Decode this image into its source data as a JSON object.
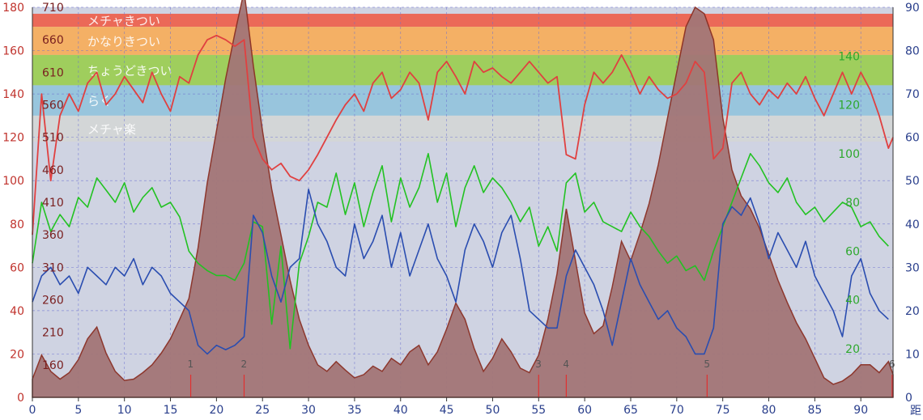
{
  "colors": {
    "plot_bg": "#cfd3e2",
    "elevation_fill": "#a37677",
    "elevation_stroke": "#8a2f24",
    "heart_rate": "#e04040",
    "cadence": "#22c222",
    "speed": "#2a4db0",
    "grid": "#6a6fd0",
    "zone_meccha_kitsui": "#ec6350",
    "zone_kanari_kitsui": "#f5ae5e",
    "zone_choudo_kitsui": "#9ccd55",
    "zone_raku": "#95c4dc",
    "zone_meccha_raku": "#d3d6d6",
    "left_axis_color": "#c0322c",
    "left_inner_axis_color": "#7a2020",
    "right_axis_color": "#2a3f8c",
    "right_inner_axis_color": "#2ea82e",
    "marker_color": "#e03030"
  },
  "chart_data": {
    "type": "area",
    "grid": true,
    "x": {
      "range": [
        0,
        93.5
      ],
      "ticks": [
        0,
        5,
        10,
        15,
        20,
        25,
        30,
        35,
        40,
        45,
        50,
        55,
        60,
        65,
        70,
        75,
        80,
        85,
        90
      ],
      "label": "距"
    },
    "y_left": {
      "range": [
        0,
        180
      ],
      "ticks": [
        0,
        20,
        40,
        60,
        80,
        100,
        120,
        140,
        160,
        180
      ]
    },
    "y_left_inner": {
      "range": [
        110,
        710
      ],
      "ticks": [
        160,
        210,
        260,
        310,
        360,
        410,
        460,
        510,
        560,
        610,
        660,
        710
      ]
    },
    "y_right": {
      "range": [
        0,
        90
      ],
      "ticks": [
        0,
        10,
        20,
        30,
        40,
        50,
        60,
        70,
        80,
        90
      ]
    },
    "y_right_inner": {
      "range": [
        0,
        160
      ],
      "ticks": [
        20,
        40,
        60,
        80,
        100,
        120,
        140
      ]
    },
    "zones": [
      {
        "label": "メチャきつい",
        "from": 171,
        "to": 177,
        "color_key": "zone_meccha_kitsui"
      },
      {
        "label": "かなりきつい",
        "from": 158,
        "to": 171,
        "color_key": "zone_kanari_kitsui"
      },
      {
        "label": "ちょうどきつい",
        "from": 144,
        "to": 158,
        "color_key": "zone_choudo_kitsui"
      },
      {
        "label": "らく",
        "from": 130,
        "to": 144,
        "color_key": "zone_raku"
      },
      {
        "label": "メチャ楽",
        "from": 118,
        "to": 130,
        "color_key": "zone_meccha_raku"
      }
    ],
    "markers": [
      {
        "label": "1",
        "x": 17.2
      },
      {
        "label": "2",
        "x": 23.0
      },
      {
        "label": "3",
        "x": 55.0
      },
      {
        "label": "4",
        "x": 58.0
      },
      {
        "label": "5",
        "x": 73.3
      },
      {
        "label": "6",
        "x": 93.4
      }
    ],
    "series": [
      {
        "key": "elevation",
        "axis": "left_inner",
        "x": [
          0,
          1,
          2,
          3,
          4,
          5,
          6,
          7,
          8,
          9,
          10,
          11,
          12,
          13,
          14,
          15,
          16,
          17,
          18,
          19,
          20,
          21,
          22,
          23,
          24,
          25,
          26,
          27,
          28,
          29,
          30,
          31,
          32,
          33,
          34,
          35,
          36,
          37,
          38,
          39,
          40,
          41,
          42,
          43,
          44,
          45,
          46,
          47,
          48,
          49,
          50,
          51,
          52,
          53,
          54,
          55,
          56,
          57,
          58,
          59,
          60,
          61,
          62,
          63,
          64,
          65,
          66,
          67,
          68,
          69,
          70,
          71,
          72,
          73,
          74,
          75,
          76,
          77,
          78,
          79,
          80,
          81,
          82,
          83,
          84,
          85,
          86,
          87,
          88,
          89,
          90,
          91,
          92,
          93,
          93.5
        ],
        "values": [
          138,
          175,
          150,
          138,
          148,
          168,
          200,
          218,
          178,
          150,
          136,
          138,
          148,
          160,
          178,
          200,
          230,
          262,
          340,
          440,
          520,
          600,
          670,
          735,
          620,
          520,
          430,
          360,
          290,
          230,
          190,
          160,
          150,
          165,
          152,
          140,
          145,
          158,
          150,
          170,
          160,
          180,
          190,
          160,
          180,
          215,
          255,
          230,
          185,
          150,
          170,
          200,
          180,
          155,
          148,
          175,
          230,
          300,
          400,
          320,
          240,
          208,
          220,
          280,
          350,
          320,
          362,
          408,
          468,
          540,
          610,
          680,
          710,
          700,
          660,
          540,
          460,
          420,
          400,
          370,
          330,
          290,
          256,
          225,
          200,
          170,
          140,
          130,
          135,
          145,
          160,
          160,
          148,
          165,
          145
        ]
      },
      {
        "key": "heart_rate",
        "axis": "left",
        "x": [
          0,
          1,
          2,
          3,
          4,
          5,
          6,
          7,
          8,
          9,
          10,
          11,
          12,
          13,
          14,
          15,
          16,
          17,
          18,
          19,
          20,
          21,
          22,
          23,
          24,
          25,
          26,
          27,
          28,
          29,
          30,
          31,
          32,
          33,
          34,
          35,
          36,
          37,
          38,
          39,
          40,
          41,
          42,
          43,
          44,
          45,
          46,
          47,
          48,
          49,
          50,
          51,
          52,
          53,
          54,
          55,
          56,
          57,
          58,
          59,
          60,
          61,
          62,
          63,
          64,
          65,
          66,
          67,
          68,
          69,
          70,
          71,
          72,
          73,
          74,
          75,
          76,
          77,
          78,
          79,
          80,
          81,
          82,
          83,
          84,
          85,
          86,
          87,
          88,
          89,
          90,
          91,
          92,
          93,
          93.5
        ],
        "values": [
          75,
          140,
          100,
          130,
          140,
          132,
          145,
          150,
          135,
          140,
          148,
          142,
          136,
          150,
          140,
          132,
          148,
          145,
          158,
          165,
          167,
          165,
          162,
          165,
          120,
          110,
          105,
          108,
          102,
          100,
          105,
          112,
          120,
          128,
          135,
          140,
          132,
          145,
          150,
          138,
          142,
          150,
          145,
          128,
          150,
          155,
          148,
          140,
          155,
          150,
          152,
          148,
          145,
          150,
          155,
          150,
          145,
          148,
          112,
          110,
          135,
          150,
          145,
          150,
          158,
          150,
          140,
          148,
          142,
          138,
          140,
          145,
          155,
          150,
          110,
          115,
          145,
          150,
          140,
          135,
          142,
          138,
          145,
          140,
          148,
          138,
          130,
          140,
          150,
          140,
          150,
          142,
          130,
          115,
          120
        ]
      },
      {
        "key": "cadence",
        "axis": "right_inner",
        "x": [
          0,
          1,
          2,
          3,
          4,
          5,
          6,
          7,
          8,
          9,
          10,
          11,
          12,
          13,
          14,
          15,
          16,
          17,
          18,
          19,
          20,
          21,
          22,
          23,
          24,
          25,
          26,
          27,
          28,
          29,
          30,
          31,
          32,
          33,
          34,
          35,
          36,
          37,
          38,
          39,
          40,
          41,
          42,
          43,
          44,
          45,
          46,
          47,
          48,
          49,
          50,
          51,
          52,
          53,
          54,
          55,
          56,
          57,
          58,
          59,
          60,
          61,
          62,
          63,
          64,
          65,
          66,
          67,
          68,
          69,
          70,
          71,
          72,
          73,
          74,
          75,
          76,
          77,
          78,
          79,
          80,
          81,
          82,
          83,
          84,
          85,
          86,
          87,
          88,
          89,
          90,
          91,
          92,
          93
        ],
        "values": [
          55,
          80,
          68,
          75,
          70,
          82,
          78,
          90,
          85,
          80,
          88,
          76,
          82,
          86,
          78,
          80,
          74,
          60,
          55,
          52,
          50,
          50,
          48,
          55,
          72,
          70,
          30,
          62,
          20,
          55,
          66,
          80,
          78,
          92,
          75,
          88,
          70,
          84,
          95,
          72,
          90,
          78,
          86,
          100,
          80,
          92,
          70,
          86,
          95,
          84,
          90,
          86,
          80,
          72,
          78,
          62,
          70,
          60,
          88,
          92,
          76,
          80,
          72,
          70,
          68,
          76,
          70,
          66,
          60,
          55,
          58,
          52,
          54,
          48,
          60,
          70,
          80,
          90,
          100,
          95,
          88,
          84,
          90,
          80,
          75,
          78,
          72,
          76,
          80,
          78,
          70,
          72,
          66,
          62
        ]
      },
      {
        "key": "speed",
        "axis": "right",
        "x": [
          0,
          1,
          2,
          3,
          4,
          5,
          6,
          7,
          8,
          9,
          10,
          11,
          12,
          13,
          14,
          15,
          16,
          17,
          18,
          19,
          20,
          21,
          22,
          23,
          24,
          25,
          26,
          27,
          28,
          29,
          30,
          31,
          32,
          33,
          34,
          35,
          36,
          37,
          38,
          39,
          40,
          41,
          42,
          43,
          44,
          45,
          46,
          47,
          48,
          49,
          50,
          51,
          52,
          53,
          54,
          55,
          56,
          57,
          58,
          59,
          60,
          61,
          62,
          63,
          64,
          65,
          66,
          67,
          68,
          69,
          70,
          71,
          72,
          73,
          74,
          75,
          76,
          77,
          78,
          79,
          80,
          81,
          82,
          83,
          84,
          85,
          86,
          87,
          88,
          89,
          90,
          91,
          92,
          93
        ],
        "values": [
          22,
          28,
          30,
          26,
          28,
          24,
          30,
          28,
          26,
          30,
          28,
          32,
          26,
          30,
          28,
          24,
          22,
          20,
          12,
          10,
          12,
          11,
          12,
          14,
          42,
          38,
          28,
          22,
          30,
          32,
          48,
          40,
          36,
          30,
          28,
          40,
          32,
          36,
          42,
          30,
          38,
          28,
          34,
          40,
          32,
          28,
          22,
          34,
          40,
          36,
          30,
          38,
          42,
          32,
          20,
          18,
          16,
          16,
          28,
          34,
          30,
          26,
          20,
          12,
          22,
          32,
          26,
          22,
          18,
          20,
          16,
          14,
          10,
          10,
          16,
          40,
          44,
          42,
          46,
          40,
          32,
          38,
          34,
          30,
          36,
          28,
          24,
          20,
          14,
          28,
          32,
          24,
          20,
          18
        ]
      }
    ]
  }
}
